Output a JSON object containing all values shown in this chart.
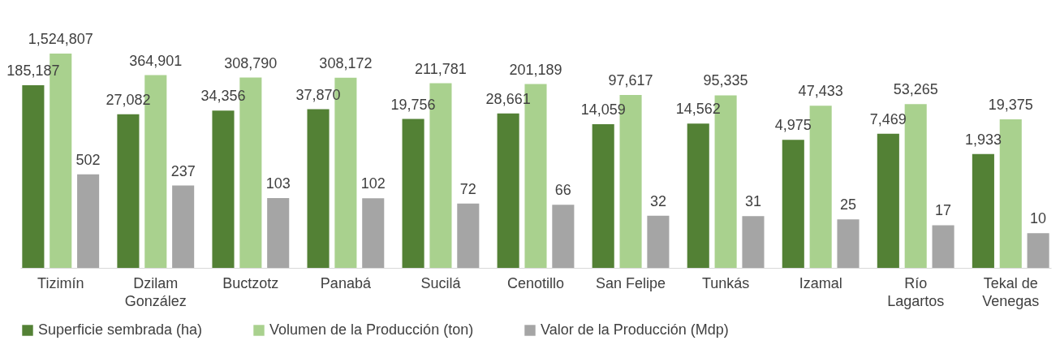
{
  "chart_data": {
    "type": "bar",
    "categories": [
      "Tizimín",
      "Dzilam\nGonzález",
      "Buctzotz",
      "Panabá",
      "Sucilá",
      "Cenotillo",
      "San Felipe",
      "Tunkás",
      "Izamal",
      "Río\nLagartos",
      "Tekal de\nVenegas"
    ],
    "series": [
      {
        "name": "Superficie sembrada (ha)",
        "color": "#538135",
        "values": [
          185187,
          27082,
          34356,
          37870,
          19756,
          28661,
          14059,
          14562,
          4975,
          7469,
          1933
        ],
        "value_labels": [
          "185,187",
          "27,082",
          "34,356",
          "37,870",
          "19,756",
          "28,661",
          "14,059",
          "14,562",
          "4,975",
          "7,469",
          "1,933"
        ]
      },
      {
        "name": "Volumen de la Producción (ton)",
        "color": "#a9d18e",
        "values": [
          1524807,
          364901,
          308790,
          308172,
          211781,
          201189,
          97617,
          95335,
          47433,
          53265,
          19375
        ],
        "value_labels": [
          "1,524,807",
          "364,901",
          "308,790",
          "308,172",
          "211,781",
          "201,189",
          "97,617",
          "95,335",
          "47,433",
          "53,265",
          "19,375"
        ]
      },
      {
        "name": "Valor de la Producción (Mdp)",
        "color": "#a5a5a5",
        "values": [
          502,
          237,
          103,
          102,
          72,
          66,
          32,
          31,
          25,
          17,
          10
        ],
        "value_labels": [
          "502",
          "237",
          "103",
          "102",
          "72",
          "66",
          "32",
          "31",
          "25",
          "17",
          "10"
        ]
      }
    ],
    "log": true,
    "ylim": [
      1,
      1524807
    ],
    "tick_labels": "x",
    "legend": "bottom"
  }
}
